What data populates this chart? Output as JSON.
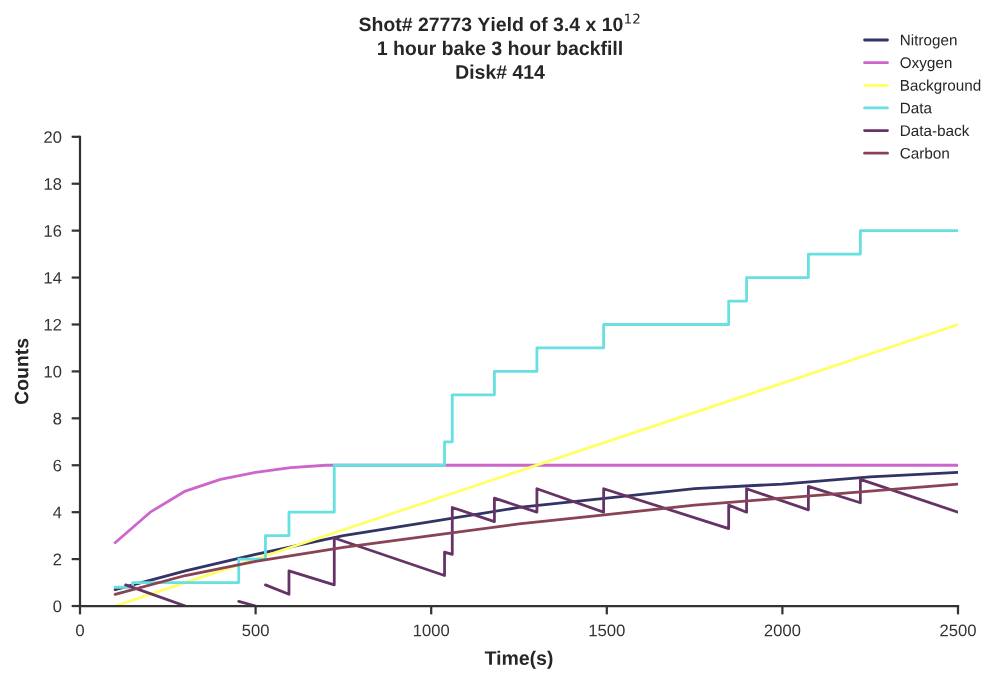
{
  "chart_data": {
    "type": "line",
    "title": "Shot# 27773 Yield of 3.4 x 10$^{12}$\n1 hour bake 3 hour backfill\nDisk# 414",
    "xlabel": "Time(s)",
    "ylabel": "Counts",
    "xlim": [
      0,
      2500
    ],
    "xticks": [
      0,
      500,
      1000,
      1500,
      2000,
      2500
    ],
    "ylim": [
      0,
      20
    ],
    "yticks": [
      0,
      2,
      4,
      6,
      8,
      10,
      12,
      14,
      16,
      18,
      20
    ],
    "grid": false,
    "legend": "top right",
    "marker": "none",
    "line_style": "solid",
    "series": [
      {
        "name": "Nitrogen",
        "color": "#333366",
        "x": [
          100,
          300,
          500,
          750,
          1000,
          1250,
          1500,
          1750,
          2000,
          2250,
          2500
        ],
        "values": [
          0.7,
          1.5,
          2.2,
          3.0,
          3.6,
          4.2,
          4.6,
          5.0,
          5.2,
          5.5,
          5.7
        ]
      },
      {
        "name": "Oxygen",
        "color": "#cc66cc",
        "x": [
          100,
          200,
          300,
          400,
          500,
          600,
          700,
          2500
        ],
        "values": [
          2.7,
          4.0,
          4.9,
          5.4,
          5.7,
          5.9,
          6.0,
          6
        ]
      },
      {
        "name": "Background",
        "color": "#ffff66",
        "x": [
          100,
          2500
        ],
        "values": [
          0,
          12
        ]
      },
      {
        "name": "Data",
        "type": "step",
        "color": "#66e0e0",
        "x": [
          100,
          150,
          452,
          528,
          595,
          724,
          1038,
          1060,
          1180,
          1301,
          1491,
          1847,
          1898,
          2074,
          2222,
          2500
        ],
        "values": [
          0.8,
          1,
          2,
          3,
          4,
          6,
          7,
          9,
          10,
          11,
          12,
          13,
          14,
          15,
          16,
          16
        ]
      },
      {
        "name": "Data-back",
        "color": "#663366",
        "x": [
          130,
          300,
          376,
          452,
          500,
          514,
          528,
          595,
          595,
          724,
          724,
          1038,
          1038,
          1060,
          1060,
          1180,
          1180,
          1301,
          1301,
          1491,
          1491,
          1847,
          1847,
          1898,
          1898,
          2074,
          2074,
          2222,
          2222,
          2500
        ],
        "values": [
          0.9,
          0,
          null,
          0.2,
          0,
          null,
          0.9,
          0.5,
          1.5,
          0.9,
          2.9,
          1.3,
          2.3,
          2.2,
          4.2,
          3.6,
          4.6,
          4.0,
          5.0,
          4.0,
          5.0,
          3.3,
          4.3,
          4.0,
          5.0,
          4.1,
          5.1,
          4.4,
          5.4,
          4.0
        ]
      },
      {
        "name": "Carbon",
        "color": "#884455",
        "x": [
          100,
          300,
          500,
          750,
          1000,
          1250,
          1500,
          1750,
          2000,
          2250,
          2500
        ],
        "values": [
          0.5,
          1.3,
          1.9,
          2.5,
          3.0,
          3.5,
          3.9,
          4.3,
          4.6,
          4.9,
          5.2
        ]
      }
    ]
  }
}
